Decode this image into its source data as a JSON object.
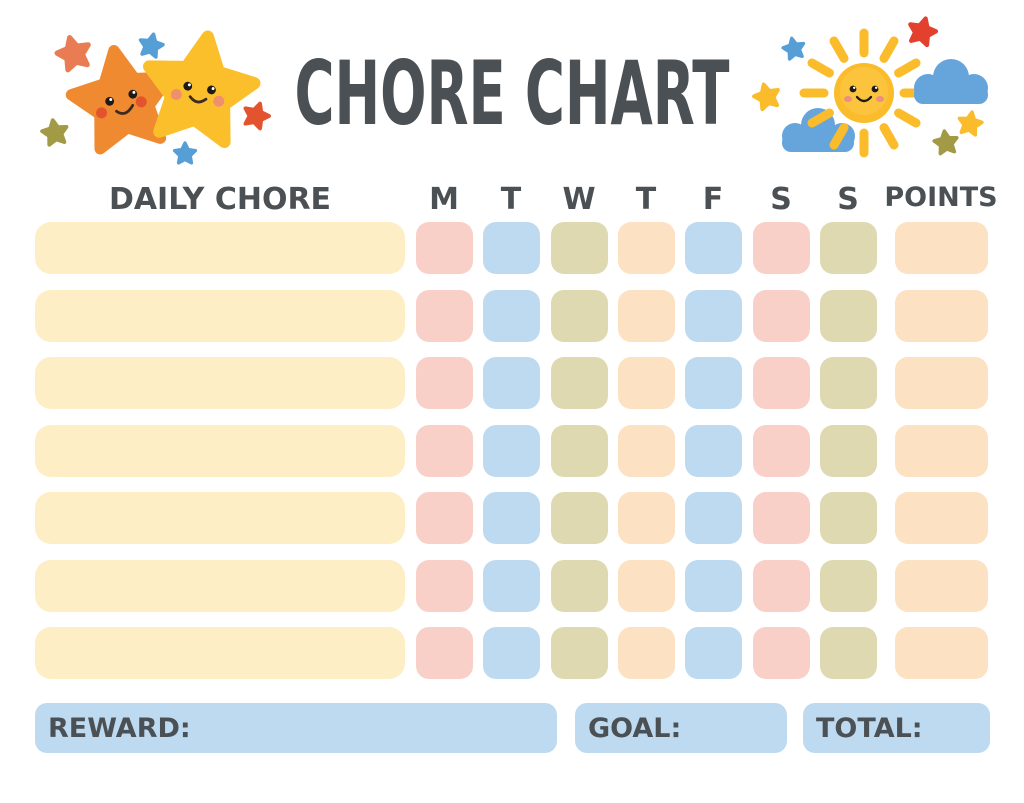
{
  "title": "CHORE CHART",
  "decorations": {
    "left_icon": "two-smiling-stars",
    "right_icon": "smiling-sun-with-clouds"
  },
  "colors": {
    "title_text": "#4b5054",
    "header_text": "#4b5054",
    "chore_bar": "#fdeec6",
    "pink": "#f9d0c8",
    "blue": "#bedaf0",
    "olive": "#ded9b1",
    "peach": "#fce1c3",
    "footer_box": "#bedaf0",
    "star_orange": "#ef8a31",
    "star_yellow": "#fbbf2c",
    "sun_yellow": "#fbbc2c",
    "cloud_blue": "#66a5dc",
    "mini_star_red": "#e4402e",
    "mini_star_coral": "#e97c52",
    "mini_star_blue": "#569fd6",
    "mini_star_olive": "#a39a45"
  },
  "table": {
    "chore_header": "DAILY CHORE",
    "day_headers": [
      "M",
      "T",
      "W",
      "T",
      "F",
      "S",
      "S"
    ],
    "day_keys": [
      "mon",
      "tue",
      "wed",
      "thu",
      "fri",
      "sat",
      "sun"
    ],
    "points_header": "POINTS",
    "day_cell_colors": [
      "pink",
      "blue",
      "olive",
      "peach",
      "blue",
      "pink",
      "olive"
    ],
    "points_cell_color": "peach",
    "chore_cell_color": "chore_bar",
    "rows": [
      {
        "chore": "",
        "days": [
          "",
          "",
          "",
          "",
          "",
          "",
          ""
        ],
        "points": ""
      },
      {
        "chore": "",
        "days": [
          "",
          "",
          "",
          "",
          "",
          "",
          ""
        ],
        "points": ""
      },
      {
        "chore": "",
        "days": [
          "",
          "",
          "",
          "",
          "",
          "",
          ""
        ],
        "points": ""
      },
      {
        "chore": "",
        "days": [
          "",
          "",
          "",
          "",
          "",
          "",
          ""
        ],
        "points": ""
      },
      {
        "chore": "",
        "days": [
          "",
          "",
          "",
          "",
          "",
          "",
          ""
        ],
        "points": ""
      },
      {
        "chore": "",
        "days": [
          "",
          "",
          "",
          "",
          "",
          "",
          ""
        ],
        "points": ""
      },
      {
        "chore": "",
        "days": [
          "",
          "",
          "",
          "",
          "",
          "",
          ""
        ],
        "points": ""
      }
    ]
  },
  "footer": {
    "reward_label": "REWARD:",
    "goal_label": "GOAL:",
    "total_label": "TOTAL:",
    "reward_value": "",
    "goal_value": "",
    "total_value": ""
  }
}
